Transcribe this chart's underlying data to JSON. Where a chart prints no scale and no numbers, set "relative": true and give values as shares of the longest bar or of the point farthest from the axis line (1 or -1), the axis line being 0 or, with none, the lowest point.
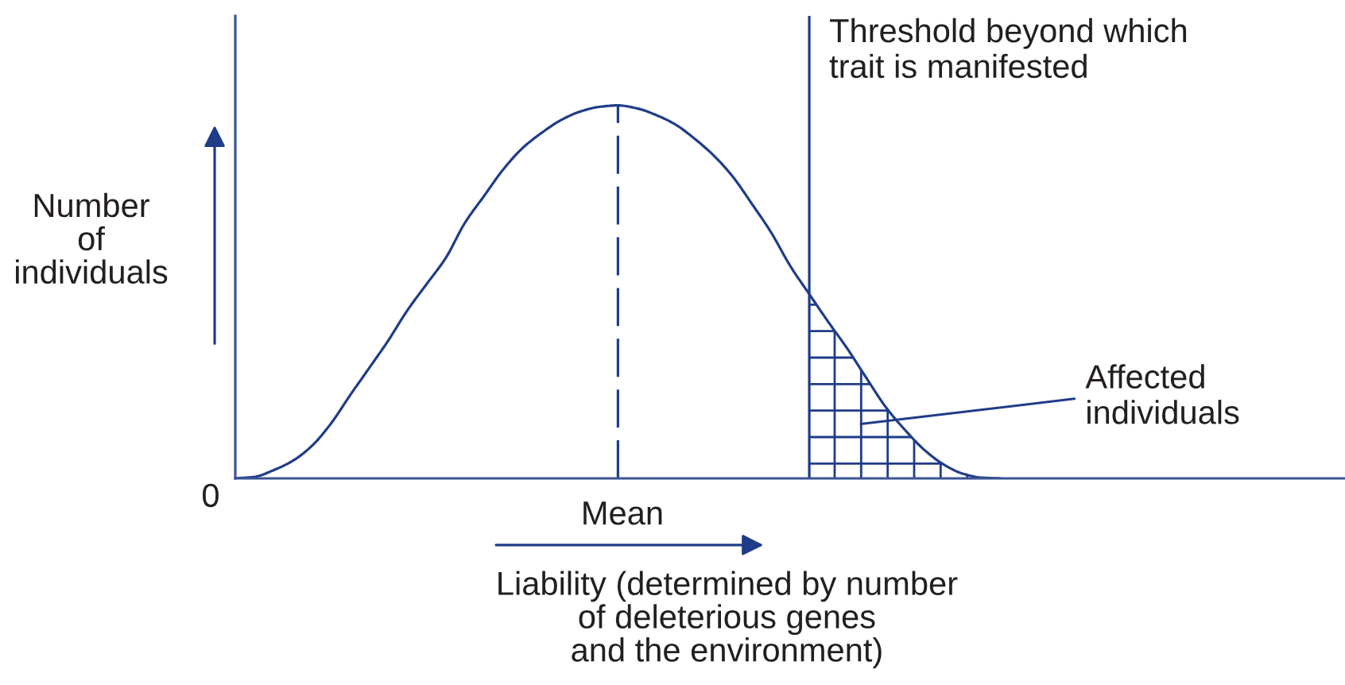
{
  "chart_data": {
    "type": "line",
    "relative": true,
    "xlabel": "Liability (determined by number\nof deleterious genes\nand the environment)",
    "ylabel": "Number\nof\nindividuals",
    "categories": [
      null,
      null,
      null,
      null,
      null,
      null,
      null,
      null,
      null,
      null,
      null,
      null,
      null,
      null,
      null,
      null,
      null,
      null,
      null,
      null,
      null,
      null,
      null,
      null,
      null,
      null,
      null,
      null,
      null,
      null,
      null,
      null,
      null,
      null,
      null,
      null,
      null,
      null,
      null,
      null,
      null,
      null,
      null,
      null,
      null,
      null,
      null,
      null,
      null,
      null,
      null,
      null,
      null,
      null,
      null,
      null,
      null,
      null,
      null
    ],
    "series": [
      {
        "color": "#1f3c88",
        "values": [
          0,
          0.004,
          0.022,
          0.047,
          0.087,
          0.147,
          0.223,
          0.296,
          0.37,
          0.451,
          0.521,
          0.591,
          0.685,
          0.757,
          0.828,
          0.885,
          0.926,
          0.96,
          0.983,
          0.996,
          1,
          0.992,
          0.974,
          0.949,
          0.911,
          0.866,
          0.809,
          0.736,
          0.66,
          0.57,
          0.494,
          0.419,
          0.347,
          0.268,
          0.191,
          0.13,
          0.077,
          0.038,
          0.013,
          0.002,
          0,
          null,
          null,
          null,
          null,
          null,
          null,
          null,
          null,
          null,
          null,
          null,
          null,
          null,
          null,
          null,
          null,
          null,
          null
        ]
      },
      {
        "name": "Affected\nindividuals",
        "type": "area",
        "color": "#1f3c88",
        "values": [
          null,
          null,
          null,
          null,
          null,
          null,
          null,
          null,
          null,
          null,
          null,
          null,
          null,
          null,
          null,
          null,
          null,
          null,
          null,
          null,
          null,
          null,
          null,
          null,
          null,
          null,
          null,
          null,
          null,
          null,
          0.494,
          0.419,
          0.347,
          0.268,
          0.191,
          0.13,
          0.077,
          0.038,
          0.013,
          0.002,
          0,
          null,
          null,
          null,
          null,
          null,
          null,
          null,
          null,
          null,
          null,
          null,
          null,
          null,
          null,
          null,
          null,
          null,
          null
        ]
      }
    ],
    "annotations": [
      "Threshold beyond which\ntrait is manifested",
      "0",
      "Mean"
    ]
  }
}
